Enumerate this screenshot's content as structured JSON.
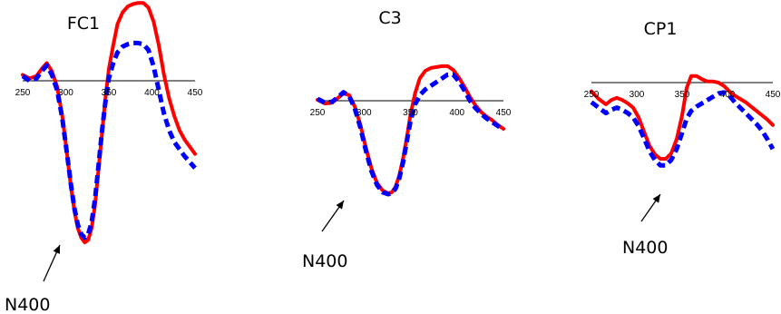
{
  "chart_data": [
    {
      "type": "line",
      "title": "FC1",
      "x_ticks": [
        250,
        300,
        350,
        400,
        450
      ],
      "xlim": [
        250,
        450
      ],
      "series": [
        {
          "color": "#ff0000",
          "style": "solid",
          "x": [
            250,
            258,
            266,
            272,
            278,
            284,
            290,
            296,
            302,
            306,
            310,
            314,
            318,
            322,
            326,
            330,
            334,
            338,
            342,
            346,
            350,
            355,
            360,
            366,
            372,
            378,
            384,
            390,
            396,
            402,
            408,
            414,
            420,
            426,
            432,
            438,
            444,
            450
          ],
          "y": [
            0.5,
            0.2,
            0.4,
            1.0,
            1.5,
            0.8,
            -0.5,
            -3.0,
            -6.5,
            -9.0,
            -11.0,
            -12.5,
            -13.3,
            -13.7,
            -13.5,
            -12.5,
            -10.5,
            -7.5,
            -4.5,
            -1.5,
            1.0,
            3.0,
            4.8,
            5.8,
            6.3,
            6.5,
            6.6,
            6.6,
            6.2,
            5.0,
            3.0,
            0.5,
            -1.5,
            -3.0,
            -4.2,
            -5.0,
            -5.6,
            -6.2
          ]
        },
        {
          "color": "#0000ff",
          "style": "dashed",
          "x": [
            250,
            258,
            266,
            272,
            278,
            284,
            290,
            296,
            302,
            306,
            310,
            314,
            318,
            322,
            326,
            330,
            334,
            338,
            342,
            346,
            350,
            355,
            360,
            366,
            372,
            378,
            384,
            390,
            396,
            402,
            408,
            414,
            420,
            426,
            432,
            438,
            444,
            450
          ],
          "y": [
            0.4,
            0.0,
            0.2,
            0.8,
            1.3,
            0.5,
            -0.8,
            -3.2,
            -6.5,
            -8.8,
            -10.8,
            -12.2,
            -13.0,
            -13.3,
            -13.0,
            -12.0,
            -10.0,
            -7.2,
            -4.3,
            -1.8,
            0.2,
            1.5,
            2.4,
            2.9,
            3.1,
            3.2,
            3.2,
            3.1,
            2.6,
            1.2,
            -0.8,
            -2.8,
            -4.2,
            -5.2,
            -5.8,
            -6.4,
            -6.9,
            -7.4
          ]
        }
      ]
    },
    {
      "type": "line",
      "title": "C3",
      "x_ticks": [
        250,
        300,
        350,
        400,
        450
      ],
      "xlim": [
        250,
        450
      ],
      "series": [
        {
          "color": "#ff0000",
          "style": "solid",
          "x": [
            250,
            258,
            266,
            272,
            278,
            284,
            290,
            296,
            302,
            308,
            314,
            320,
            326,
            330,
            334,
            338,
            342,
            346,
            350,
            355,
            360,
            366,
            372,
            378,
            384,
            390,
            396,
            402,
            408,
            414,
            420,
            426,
            432,
            438,
            444,
            450
          ],
          "y": [
            0.1,
            -0.3,
            -0.2,
            0.3,
            0.8,
            0.6,
            -0.6,
            -2.5,
            -5.0,
            -7.2,
            -8.8,
            -9.6,
            -9.9,
            -9.8,
            -9.2,
            -8.0,
            -6.2,
            -4.0,
            -1.5,
            0.8,
            2.4,
            3.2,
            3.5,
            3.6,
            3.7,
            3.7,
            3.3,
            2.5,
            1.5,
            0.4,
            -0.5,
            -1.2,
            -1.7,
            -2.1,
            -2.6,
            -3.0
          ]
        },
        {
          "color": "#0000ff",
          "style": "dashed",
          "x": [
            250,
            258,
            266,
            272,
            278,
            284,
            290,
            296,
            302,
            308,
            314,
            320,
            326,
            330,
            334,
            338,
            342,
            346,
            350,
            355,
            360,
            366,
            372,
            378,
            384,
            390,
            396,
            402,
            408,
            414,
            420,
            426,
            432,
            438,
            444,
            450
          ],
          "y": [
            0.2,
            -0.2,
            -0.1,
            0.4,
            0.9,
            0.5,
            -0.8,
            -2.8,
            -5.3,
            -7.5,
            -9.0,
            -9.8,
            -10.0,
            -9.9,
            -9.4,
            -8.3,
            -6.6,
            -4.4,
            -2.2,
            -0.4,
            0.6,
            1.2,
            1.6,
            2.0,
            2.4,
            2.8,
            2.8,
            2.1,
            1.1,
            0.0,
            -0.8,
            -1.4,
            -1.9,
            -2.3,
            -2.7,
            -3.1
          ]
        }
      ]
    },
    {
      "type": "line",
      "title": "CP1",
      "x_ticks": [
        250,
        300,
        350,
        400,
        450
      ],
      "xlim": [
        250,
        450
      ],
      "series": [
        {
          "color": "#ff0000",
          "style": "solid",
          "x": [
            250,
            258,
            266,
            272,
            278,
            284,
            290,
            296,
            302,
            308,
            314,
            320,
            326,
            332,
            338,
            344,
            350,
            355,
            360,
            366,
            372,
            378,
            384,
            390,
            396,
            402,
            408,
            414,
            420,
            426,
            432,
            438,
            444,
            450
          ],
          "y": [
            -0.8,
            -1.5,
            -2.0,
            -1.6,
            -1.4,
            -1.6,
            -1.9,
            -2.3,
            -3.2,
            -4.5,
            -5.8,
            -6.6,
            -7.0,
            -7.0,
            -6.5,
            -5.2,
            -3.0,
            -0.5,
            0.6,
            0.6,
            0.3,
            0.1,
            0.1,
            0.0,
            -0.3,
            -0.8,
            -1.2,
            -1.5,
            -1.8,
            -2.2,
            -2.6,
            -3.0,
            -3.4,
            -3.9
          ]
        },
        {
          "color": "#0000ff",
          "style": "dashed",
          "x": [
            250,
            258,
            266,
            272,
            278,
            284,
            290,
            296,
            302,
            308,
            314,
            320,
            326,
            332,
            338,
            344,
            350,
            355,
            360,
            366,
            372,
            378,
            384,
            390,
            396,
            402,
            408,
            414,
            420,
            426,
            432,
            438,
            444,
            450
          ],
          "y": [
            -1.8,
            -2.3,
            -2.8,
            -2.5,
            -2.3,
            -2.5,
            -2.8,
            -3.2,
            -4.0,
            -5.1,
            -6.3,
            -7.1,
            -7.6,
            -7.6,
            -7.1,
            -6.1,
            -4.6,
            -3.3,
            -2.6,
            -2.2,
            -1.9,
            -1.6,
            -1.3,
            -1.0,
            -0.9,
            -1.2,
            -1.8,
            -2.3,
            -2.8,
            -3.3,
            -3.8,
            -4.4,
            -5.2,
            -6.1
          ]
        }
      ]
    }
  ],
  "annotations": [
    {
      "text": "N400"
    },
    {
      "text": "N400"
    },
    {
      "text": "N400"
    }
  ]
}
